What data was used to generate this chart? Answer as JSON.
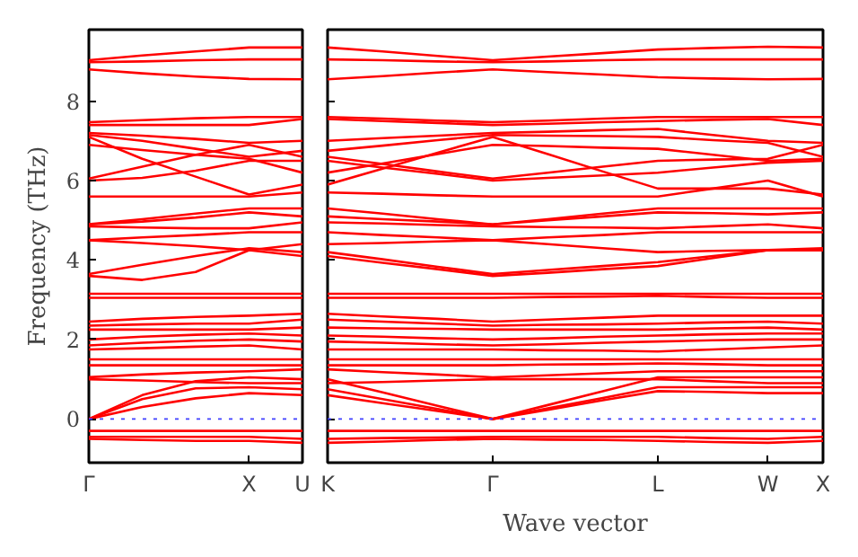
{
  "chart_data": [
    {
      "type": "line",
      "ylabel": "Frequency (THz)",
      "categories": [
        "Γ",
        null,
        null,
        "X",
        "U"
      ],
      "ylim": [
        -1.1,
        9.8
      ],
      "yticks": [
        0,
        2,
        4,
        6,
        8
      ],
      "grid": false,
      "line_style": "solid",
      "ref_lines": [
        {
          "axis": "y",
          "value": 0,
          "label": null,
          "color": "#4040ff",
          "line_style": "dotted"
        }
      ],
      "series": [
        {
          "color": "#ff0000",
          "values": [
            9.03,
            9.15,
            9.25,
            9.35,
            9.35
          ]
        },
        {
          "color": "#ff0000",
          "values": [
            8.98,
            9.0,
            9.03,
            9.05,
            9.05
          ]
        },
        {
          "color": "#ff0000",
          "values": [
            8.8,
            8.7,
            8.62,
            8.56,
            8.55
          ]
        },
        {
          "color": "#ff0000",
          "values": [
            7.47,
            7.52,
            7.57,
            7.6,
            7.6
          ]
        },
        {
          "color": "#ff0000",
          "values": [
            7.4,
            7.4,
            7.4,
            7.4,
            7.55
          ]
        },
        {
          "color": "#ff0000",
          "values": [
            7.2,
            7.13,
            7.05,
            6.95,
            7.0
          ]
        },
        {
          "color": "#ff0000",
          "values": [
            7.15,
            7.0,
            6.8,
            6.6,
            6.75
          ]
        },
        {
          "color": "#ff0000",
          "values": [
            6.9,
            6.77,
            6.65,
            6.55,
            6.2
          ]
        },
        {
          "color": "#ff0000",
          "values": [
            6.05,
            6.35,
            6.65,
            6.9,
            6.6
          ]
        },
        {
          "color": "#ff0000",
          "values": [
            6.0,
            6.07,
            6.25,
            6.5,
            6.5
          ]
        },
        {
          "color": "#ff0000",
          "values": [
            7.1,
            6.55,
            6.1,
            5.65,
            5.9
          ]
        },
        {
          "color": "#ff0000",
          "values": [
            5.6,
            5.6,
            5.6,
            5.6,
            5.7
          ]
        },
        {
          "color": "#ff0000",
          "values": [
            4.9,
            5.03,
            5.17,
            5.3,
            5.3
          ]
        },
        {
          "color": "#ff0000",
          "values": [
            4.9,
            4.97,
            5.07,
            5.2,
            5.1
          ]
        },
        {
          "color": "#ff0000",
          "values": [
            4.85,
            4.82,
            4.8,
            4.8,
            4.95
          ]
        },
        {
          "color": "#ff0000",
          "values": [
            4.5,
            4.57,
            4.63,
            4.7,
            4.7
          ]
        },
        {
          "color": "#ff0000",
          "values": [
            4.5,
            4.43,
            4.35,
            4.25,
            4.4
          ]
        },
        {
          "color": "#ff0000",
          "values": [
            3.65,
            3.88,
            4.1,
            4.3,
            4.2
          ]
        },
        {
          "color": "#ff0000",
          "values": [
            3.6,
            3.5,
            3.7,
            4.25,
            4.1
          ]
        },
        {
          "color": "#ff0000",
          "values": [
            3.15,
            3.15,
            3.15,
            3.15,
            3.15
          ]
        },
        {
          "color": "#ff0000",
          "values": [
            3.05,
            3.05,
            3.05,
            3.05,
            3.05
          ]
        },
        {
          "color": "#ff0000",
          "values": [
            2.45,
            2.52,
            2.57,
            2.6,
            2.65
          ]
        },
        {
          "color": "#ff0000",
          "values": [
            2.35,
            2.38,
            2.4,
            2.4,
            2.5
          ]
        },
        {
          "color": "#ff0000",
          "values": [
            2.25,
            2.25,
            2.25,
            2.25,
            2.3
          ]
        },
        {
          "color": "#ff0000",
          "values": [
            2.0,
            2.07,
            2.12,
            2.15,
            2.1
          ]
        },
        {
          "color": "#ff0000",
          "values": [
            1.85,
            1.92,
            1.97,
            2.0,
            1.95
          ]
        },
        {
          "color": "#ff0000",
          "values": [
            1.75,
            1.78,
            1.82,
            1.85,
            1.75
          ]
        },
        {
          "color": "#ff0000",
          "values": [
            1.5,
            1.5,
            1.5,
            1.5,
            1.5
          ]
        },
        {
          "color": "#ff0000",
          "values": [
            1.35,
            1.35,
            1.35,
            1.35,
            1.35
          ]
        },
        {
          "color": "#ff0000",
          "values": [
            1.05,
            1.12,
            1.17,
            1.2,
            1.25
          ]
        },
        {
          "color": "#ff0000",
          "values": [
            1.0,
            0.97,
            0.93,
            0.9,
            0.9
          ]
        },
        {
          "color": "#ff0000",
          "values": [
            0,
            0.6,
            0.95,
            1.05,
            1.0
          ]
        },
        {
          "color": "#ff0000",
          "values": [
            0,
            0.5,
            0.77,
            0.8,
            0.75
          ]
        },
        {
          "color": "#ff0000",
          "values": [
            0,
            0.3,
            0.52,
            0.65,
            0.6
          ]
        },
        {
          "color": "#ff0000",
          "values": [
            -0.3,
            -0.3,
            -0.3,
            -0.3,
            -0.3
          ]
        },
        {
          "color": "#ff0000",
          "values": [
            -0.45,
            -0.45,
            -0.45,
            -0.45,
            -0.5
          ]
        },
        {
          "color": "#ff0000",
          "values": [
            -0.5,
            -0.53,
            -0.55,
            -0.55,
            -0.6
          ]
        }
      ]
    },
    {
      "type": "line",
      "xlabel": "Wave vector",
      "categories": [
        "K",
        null,
        null,
        "Γ",
        null,
        null,
        "L",
        null,
        "W",
        "X"
      ],
      "ylim": [
        -1.1,
        9.8
      ],
      "yticks": [
        0,
        2,
        4,
        6,
        8
      ],
      "tick_labels": "x",
      "grid": false,
      "line_style": "solid",
      "ref_lines": [
        {
          "axis": "y",
          "value": 0,
          "label": null,
          "color": "#4040ff",
          "line_style": "dotted"
        }
      ],
      "series": [
        {
          "color": "#ff0000",
          "values": [
            9.35,
            9.25,
            9.14,
            9.03,
            9.12,
            9.21,
            9.3,
            9.34,
            9.37,
            9.35
          ]
        },
        {
          "color": "#ff0000",
          "values": [
            9.05,
            9.03,
            9.0,
            8.98,
            9.0,
            9.03,
            9.05,
            9.05,
            9.05,
            9.05
          ]
        },
        {
          "color": "#ff0000",
          "values": [
            8.55,
            8.63,
            8.72,
            8.8,
            8.73,
            8.67,
            8.6,
            8.57,
            8.55,
            8.56
          ]
        },
        {
          "color": "#ff0000",
          "values": [
            7.6,
            7.56,
            7.51,
            7.47,
            7.51,
            7.56,
            7.6,
            7.6,
            7.6,
            7.6
          ]
        },
        {
          "color": "#ff0000",
          "values": [
            7.55,
            7.5,
            7.45,
            7.4,
            7.43,
            7.47,
            7.5,
            7.53,
            7.55,
            7.4
          ]
        },
        {
          "color": "#ff0000",
          "values": [
            7.0,
            7.07,
            7.13,
            7.2,
            7.23,
            7.27,
            7.3,
            7.15,
            7.0,
            6.95
          ]
        },
        {
          "color": "#ff0000",
          "values": [
            6.75,
            6.88,
            7.02,
            7.15,
            7.13,
            7.12,
            7.1,
            7.02,
            6.95,
            6.6
          ]
        },
        {
          "color": "#ff0000",
          "values": [
            6.2,
            6.43,
            6.67,
            6.9,
            6.87,
            6.83,
            6.8,
            6.65,
            6.5,
            6.55
          ]
        },
        {
          "color": "#ff0000",
          "values": [
            6.6,
            6.42,
            6.23,
            6.05,
            6.2,
            6.35,
            6.5,
            6.53,
            6.55,
            6.9
          ]
        },
        {
          "color": "#ff0000",
          "values": [
            6.5,
            6.33,
            6.17,
            6.0,
            6.07,
            6.13,
            6.2,
            6.33,
            6.45,
            6.5
          ]
        },
        {
          "color": "#ff0000",
          "values": [
            5.9,
            6.3,
            6.7,
            7.1,
            6.67,
            6.23,
            5.8,
            5.8,
            5.8,
            5.65
          ]
        },
        {
          "color": "#ff0000",
          "values": [
            5.7,
            5.67,
            5.63,
            5.6,
            5.6,
            5.6,
            5.6,
            5.8,
            6.0,
            5.6
          ]
        },
        {
          "color": "#ff0000",
          "values": [
            5.3,
            5.17,
            5.03,
            4.9,
            5.03,
            5.17,
            5.3,
            5.3,
            5.3,
            5.3
          ]
        },
        {
          "color": "#ff0000",
          "values": [
            5.1,
            5.03,
            4.97,
            4.9,
            5.0,
            5.1,
            5.2,
            5.18,
            5.15,
            5.2
          ]
        },
        {
          "color": "#ff0000",
          "values": [
            4.95,
            4.92,
            4.88,
            4.85,
            4.83,
            4.82,
            4.8,
            4.85,
            4.9,
            4.8
          ]
        },
        {
          "color": "#ff0000",
          "values": [
            4.7,
            4.63,
            4.57,
            4.5,
            4.57,
            4.63,
            4.7,
            4.7,
            4.7,
            4.7
          ]
        },
        {
          "color": "#ff0000",
          "values": [
            4.4,
            4.43,
            4.47,
            4.5,
            4.4,
            4.3,
            4.2,
            4.23,
            4.25,
            4.25
          ]
        },
        {
          "color": "#ff0000",
          "values": [
            4.2,
            4.02,
            3.83,
            3.65,
            3.75,
            3.85,
            3.95,
            4.1,
            4.25,
            4.3
          ]
        },
        {
          "color": "#ff0000",
          "values": [
            4.1,
            3.93,
            3.77,
            3.6,
            3.68,
            3.77,
            3.85,
            4.05,
            4.25,
            4.25
          ]
        },
        {
          "color": "#ff0000",
          "values": [
            3.15,
            3.15,
            3.15,
            3.15,
            3.15,
            3.15,
            3.15,
            3.15,
            3.15,
            3.15
          ]
        },
        {
          "color": "#ff0000",
          "values": [
            3.05,
            3.05,
            3.05,
            3.05,
            3.07,
            3.08,
            3.1,
            3.07,
            3.05,
            3.05
          ]
        },
        {
          "color": "#ff0000",
          "values": [
            2.65,
            2.58,
            2.52,
            2.45,
            2.5,
            2.55,
            2.6,
            2.6,
            2.6,
            2.6
          ]
        },
        {
          "color": "#ff0000",
          "values": [
            2.5,
            2.45,
            2.4,
            2.35,
            2.37,
            2.38,
            2.4,
            2.43,
            2.45,
            2.4
          ]
        },
        {
          "color": "#ff0000",
          "values": [
            2.3,
            2.28,
            2.27,
            2.25,
            2.25,
            2.25,
            2.25,
            2.28,
            2.3,
            2.25
          ]
        },
        {
          "color": "#ff0000",
          "values": [
            2.1,
            2.07,
            2.03,
            2.0,
            2.03,
            2.07,
            2.1,
            2.13,
            2.15,
            2.15
          ]
        },
        {
          "color": "#ff0000",
          "values": [
            1.95,
            1.92,
            1.88,
            1.85,
            1.88,
            1.92,
            1.95,
            1.98,
            2.0,
            2.0
          ]
        },
        {
          "color": "#ff0000",
          "values": [
            1.75,
            1.75,
            1.75,
            1.75,
            1.73,
            1.72,
            1.7,
            1.75,
            1.8,
            1.85
          ]
        },
        {
          "color": "#ff0000",
          "values": [
            1.5,
            1.5,
            1.5,
            1.5,
            1.5,
            1.5,
            1.5,
            1.5,
            1.5,
            1.5
          ]
        },
        {
          "color": "#ff0000",
          "values": [
            1.35,
            1.35,
            1.35,
            1.35,
            1.37,
            1.38,
            1.4,
            1.38,
            1.35,
            1.35
          ]
        },
        {
          "color": "#ff0000",
          "values": [
            1.25,
            1.18,
            1.12,
            1.05,
            1.1,
            1.15,
            1.2,
            1.2,
            1.2,
            1.2
          ]
        },
        {
          "color": "#ff0000",
          "values": [
            0.9,
            0.93,
            0.97,
            1.0,
            1.0,
            1.0,
            1.0,
            0.95,
            0.9,
            0.9
          ]
        },
        {
          "color": "#ff0000",
          "values": [
            1.0,
            0.67,
            0.33,
            0,
            0.35,
            0.7,
            1.05,
            1.05,
            1.05,
            1.05
          ]
        },
        {
          "color": "#ff0000",
          "values": [
            0.75,
            0.5,
            0.25,
            0,
            0.27,
            0.53,
            0.8,
            0.8,
            0.8,
            0.8
          ]
        },
        {
          "color": "#ff0000",
          "values": [
            0.6,
            0.4,
            0.2,
            0,
            0.23,
            0.47,
            0.7,
            0.68,
            0.65,
            0.65
          ]
        },
        {
          "color": "#ff0000",
          "values": [
            -0.3,
            -0.3,
            -0.3,
            -0.3,
            -0.3,
            -0.3,
            -0.3,
            -0.3,
            -0.3,
            -0.3
          ]
        },
        {
          "color": "#ff0000",
          "values": [
            -0.5,
            -0.48,
            -0.47,
            -0.45,
            -0.45,
            -0.45,
            -0.45,
            -0.48,
            -0.5,
            -0.45
          ]
        },
        {
          "color": "#ff0000",
          "values": [
            -0.6,
            -0.57,
            -0.53,
            -0.5,
            -0.52,
            -0.53,
            -0.55,
            -0.58,
            -0.6,
            -0.55
          ]
        }
      ]
    }
  ]
}
